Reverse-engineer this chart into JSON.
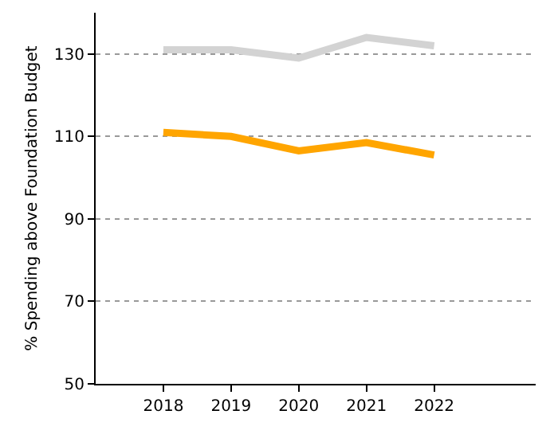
{
  "chart_data": {
    "type": "line",
    "ylabel": "% Spending above Foundation Budget",
    "x": [
      2018,
      2019,
      2020,
      2021,
      2022
    ],
    "series": [
      {
        "color": "#d3d3d3",
        "values": [
          131,
          131,
          129,
          134,
          132
        ]
      },
      {
        "color": "#ffa500",
        "values": [
          111,
          110,
          106.5,
          108.5,
          105.5
        ]
      }
    ],
    "xlim": [
      2017,
      2023.5
    ],
    "xticks": [
      2018,
      2019,
      2020,
      2021,
      2022
    ],
    "ylim": [
      50,
      140
    ],
    "yticks": [
      50,
      70,
      90,
      110,
      130
    ],
    "grid": "y",
    "marker": "none",
    "line_style": "solid"
  }
}
